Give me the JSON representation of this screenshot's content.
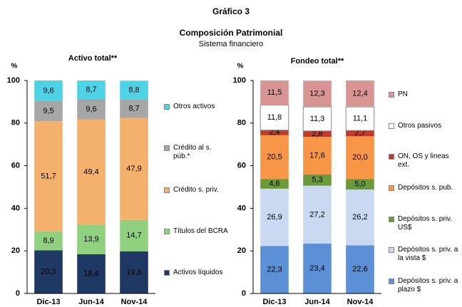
{
  "header": {
    "title": "Gráfico 3",
    "subtitle": "Composición Patrimonial",
    "note": "Sistema financiero"
  },
  "chart_data": [
    {
      "type": "bar",
      "stacked": true,
      "title": "Activo total**",
      "ylabel": "%",
      "categories": [
        "Dic-13",
        "Jun-14",
        "Nov-14"
      ],
      "ylim": [
        0,
        100
      ],
      "yticks": [
        0,
        20,
        40,
        60,
        80,
        100
      ],
      "series": [
        {
          "name": "Activos líquidos",
          "color": "#1f3864",
          "values": [
            20.3,
            18.4,
            19.8
          ],
          "value_labels": [
            "20,3",
            "18,4",
            "19,8"
          ]
        },
        {
          "name": "Títulos del BCRA",
          "color": "#8fd17f",
          "values": [
            8.9,
            13.9,
            14.7
          ],
          "value_labels": [
            "8,9",
            "13,9",
            "14,7"
          ]
        },
        {
          "name": "Crédito s. priv.",
          "color": "#f4b16e",
          "values": [
            51.7,
            49.4,
            47.9
          ],
          "value_labels": [
            "51,7",
            "49,4",
            "47,9"
          ]
        },
        {
          "name": "Crédito al s. púb.*",
          "color": "#a6a6a6",
          "values": [
            9.5,
            9.6,
            8.7
          ],
          "value_labels": [
            "9,5",
            "9,6",
            "8,7"
          ]
        },
        {
          "name": "Otros activos",
          "color": "#4dd2e6",
          "values": [
            9.6,
            8.7,
            8.8
          ],
          "value_labels": [
            "9,6",
            "8,7",
            "8,8"
          ]
        }
      ]
    },
    {
      "type": "bar",
      "stacked": true,
      "title": "Fondeo total**",
      "ylabel": "%",
      "categories": [
        "Dic-13",
        "Jun-14",
        "Nov-14"
      ],
      "ylim": [
        0,
        100
      ],
      "yticks": [
        0,
        20,
        40,
        60,
        80,
        100
      ],
      "series": [
        {
          "name": "Depósitos s. priv. a plazo $",
          "color": "#5b8fd6",
          "values": [
            22.3,
            23.4,
            22.6
          ],
          "value_labels": [
            "22,3",
            "23,4",
            "22,6"
          ]
        },
        {
          "name": "Depósitos s. priv. a la vista $",
          "color": "#c9d9f2",
          "values": [
            26.9,
            27.2,
            26.2
          ],
          "value_labels": [
            "26,9",
            "27,2",
            "26,2"
          ]
        },
        {
          "name": "Depósitos s. priv. US$",
          "color": "#6a9a3a",
          "values": [
            4.6,
            5.3,
            5.0
          ],
          "value_labels": [
            "4,6",
            "5,3",
            "5,0"
          ]
        },
        {
          "name": "Depósitos s. pub.",
          "color": "#f79646",
          "values": [
            20.5,
            17.6,
            20.0
          ],
          "value_labels": [
            "20,5",
            "17,6",
            "20,0"
          ]
        },
        {
          "name": "ON, OS y lineas ext.",
          "color": "#c0392b",
          "values": [
            2.4,
            2.8,
            2.7
          ],
          "value_labels": [
            "2,4",
            "2,8",
            "2,7"
          ]
        },
        {
          "name": "Otros pasivos",
          "color": "#ffffff",
          "values": [
            11.8,
            11.3,
            11.1
          ],
          "value_labels": [
            "11,8",
            "11,3",
            "11,1"
          ]
        },
        {
          "name": "PN",
          "color": "#d99594",
          "values": [
            11.5,
            12.3,
            12.4
          ],
          "value_labels": [
            "11,5",
            "12,3",
            "12,4"
          ]
        }
      ]
    }
  ]
}
